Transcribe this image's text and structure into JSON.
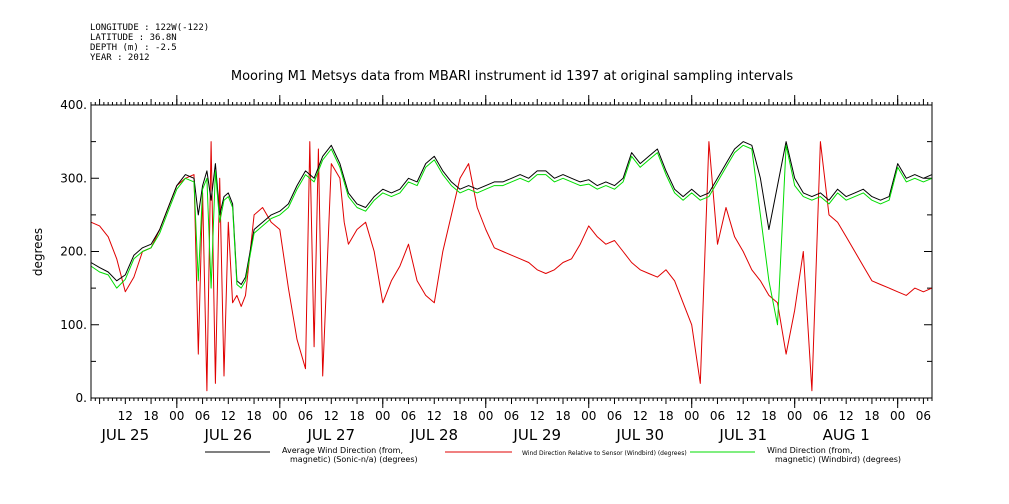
{
  "meta": {
    "longitude": "LONGITUDE : 122W(-122)",
    "latitude": "LATITUDE : 36.8N",
    "depth": "DEPTH (m) : -2.5",
    "year": "YEAR : 2012"
  },
  "chart_data": {
    "type": "line",
    "title": "Mooring M1 Metsys data from MBARI instrument id 1397 at original sampling intervals",
    "ylabel": "degrees",
    "xlabel": "",
    "ylim": [
      0,
      400
    ],
    "xlim": [
      4,
      200
    ],
    "x_unit": "hours since 00:00 JUL 25 2012",
    "y_ticks": [
      "0.",
      "100.",
      "200.",
      "300.",
      "400."
    ],
    "hour_ticks": [
      "12",
      "18",
      "00",
      "06",
      "12",
      "18",
      "00",
      "06",
      "12",
      "18",
      "00",
      "06",
      "12",
      "18",
      "00",
      "06",
      "12",
      "18",
      "00",
      "06",
      "12",
      "18",
      "00",
      "06",
      "12",
      "18",
      "00",
      "06",
      "12",
      "18",
      "00",
      "06"
    ],
    "date_labels": [
      "JUL 25",
      "JUL 26",
      "JUL 27",
      "JUL 28",
      "JUL 29",
      "JUL 30",
      "JUL 31",
      "AUG  1"
    ],
    "grid": false,
    "legend": {
      "placement": "bottom"
    },
    "series": [
      {
        "name": "Average Wind Direction (from, magnetic) (Sonic-n/a) (degrees)",
        "legend_lines": [
          "Average Wind Direction (from,",
          "magnetic) (Sonic-n/a) (degrees)"
        ],
        "color": "#000000",
        "x": [
          4,
          6,
          8,
          10,
          12,
          14,
          16,
          18,
          20,
          22,
          24,
          26,
          28,
          29,
          30,
          31,
          32,
          33,
          34,
          35,
          36,
          37,
          38,
          39,
          40,
          42,
          44,
          46,
          48,
          50,
          52,
          54,
          56,
          58,
          60,
          62,
          64,
          66,
          68,
          70,
          72,
          74,
          76,
          78,
          80,
          82,
          84,
          86,
          88,
          90,
          92,
          94,
          96,
          98,
          100,
          102,
          104,
          106,
          108,
          110,
          112,
          114,
          116,
          118,
          120,
          122,
          124,
          126,
          128,
          130,
          132,
          134,
          136,
          138,
          140,
          142,
          144,
          146,
          148,
          150,
          152,
          154,
          156,
          158,
          160,
          162,
          164,
          166,
          168,
          170,
          172,
          174,
          176,
          178,
          180,
          182,
          184,
          186,
          188,
          190,
          192,
          194,
          196,
          198,
          200
        ],
        "y": [
          185,
          178,
          172,
          160,
          168,
          195,
          205,
          210,
          230,
          260,
          290,
          305,
          300,
          250,
          290,
          310,
          270,
          320,
          250,
          275,
          280,
          265,
          160,
          155,
          165,
          230,
          240,
          250,
          255,
          265,
          290,
          310,
          300,
          330,
          345,
          320,
          280,
          265,
          260,
          275,
          285,
          280,
          285,
          300,
          295,
          320,
          330,
          310,
          295,
          285,
          290,
          285,
          290,
          295,
          295,
          300,
          305,
          300,
          310,
          310,
          300,
          305,
          300,
          295,
          298,
          290,
          295,
          290,
          300,
          335,
          320,
          330,
          340,
          310,
          285,
          275,
          285,
          275,
          280,
          300,
          320,
          340,
          350,
          345,
          300,
          230,
          290,
          350,
          300,
          280,
          275,
          280,
          270,
          285,
          275,
          280,
          285,
          275,
          270,
          275,
          320,
          300,
          305,
          300,
          305
        ]
      },
      {
        "name": "Wind Direction Relative to Sensor (Windbird) (degrees)",
        "legend_lines": [
          "Wind Direction Relative to Sensor (Windbird) (degrees)"
        ],
        "color": "#e00000",
        "x": [
          4,
          6,
          8,
          10,
          12,
          14,
          16,
          18,
          20,
          22,
          24,
          26,
          28,
          29,
          30,
          31,
          32,
          33,
          34,
          35,
          36,
          37,
          38,
          39,
          40,
          42,
          44,
          46,
          48,
          50,
          52,
          54,
          55,
          56,
          57,
          58,
          60,
          62,
          63,
          64,
          66,
          68,
          70,
          72,
          74,
          76,
          78,
          80,
          82,
          84,
          86,
          88,
          90,
          92,
          94,
          96,
          98,
          100,
          102,
          104,
          106,
          108,
          110,
          112,
          114,
          116,
          118,
          120,
          122,
          124,
          126,
          128,
          130,
          132,
          134,
          136,
          138,
          140,
          142,
          144,
          146,
          148,
          150,
          152,
          154,
          156,
          158,
          160,
          162,
          164,
          166,
          168,
          170,
          172,
          174,
          176,
          178,
          180,
          182,
          184,
          186,
          188,
          190,
          192,
          194,
          196,
          198,
          200
        ],
        "y": [
          240,
          235,
          220,
          190,
          145,
          165,
          200,
          205,
          230,
          260,
          290,
          300,
          305,
          60,
          280,
          10,
          350,
          20,
          300,
          30,
          240,
          130,
          140,
          125,
          140,
          250,
          260,
          240,
          230,
          150,
          80,
          40,
          350,
          70,
          340,
          30,
          320,
          300,
          240,
          210,
          230,
          240,
          200,
          130,
          160,
          180,
          210,
          160,
          140,
          130,
          200,
          250,
          300,
          320,
          260,
          230,
          205,
          200,
          195,
          190,
          185,
          175,
          170,
          175,
          185,
          190,
          210,
          235,
          220,
          210,
          215,
          200,
          185,
          175,
          170,
          165,
          175,
          160,
          130,
          100,
          20,
          350,
          210,
          260,
          220,
          200,
          175,
          160,
          140,
          130,
          60,
          120,
          200,
          10,
          350,
          250,
          240,
          220,
          200,
          180,
          160,
          155,
          150,
          145,
          140,
          150,
          145,
          150
        ]
      },
      {
        "name": "Wind Direction (from, magnetic) (Windbird) (degrees)",
        "legend_lines": [
          "Wind Direction (from,",
          "magnetic) (Windbird) (degrees)"
        ],
        "color": "#00dd00",
        "x": [
          4,
          6,
          8,
          10,
          12,
          14,
          16,
          18,
          20,
          22,
          24,
          26,
          28,
          29,
          30,
          31,
          32,
          33,
          34,
          35,
          36,
          37,
          38,
          39,
          40,
          42,
          44,
          46,
          48,
          50,
          52,
          54,
          56,
          58,
          60,
          62,
          64,
          66,
          68,
          70,
          72,
          74,
          76,
          78,
          80,
          82,
          84,
          86,
          88,
          90,
          92,
          94,
          96,
          98,
          100,
          102,
          104,
          106,
          108,
          110,
          112,
          114,
          116,
          118,
          120,
          122,
          124,
          126,
          128,
          130,
          132,
          134,
          136,
          138,
          140,
          142,
          144,
          146,
          148,
          150,
          152,
          154,
          156,
          158,
          160,
          162,
          164,
          166,
          168,
          170,
          172,
          174,
          176,
          178,
          180,
          182,
          184,
          186,
          188,
          190,
          192,
          194,
          196,
          198,
          200
        ],
        "y": [
          180,
          172,
          168,
          150,
          162,
          190,
          200,
          205,
          225,
          255,
          285,
          300,
          295,
          160,
          285,
          300,
          150,
          310,
          240,
          270,
          275,
          260,
          155,
          150,
          160,
          225,
          235,
          245,
          250,
          260,
          285,
          305,
          295,
          325,
          340,
          315,
          275,
          260,
          255,
          270,
          280,
          275,
          280,
          295,
          290,
          315,
          325,
          305,
          290,
          280,
          285,
          280,
          285,
          290,
          290,
          295,
          300,
          295,
          305,
          305,
          295,
          300,
          295,
          290,
          292,
          285,
          290,
          285,
          295,
          330,
          315,
          325,
          335,
          305,
          280,
          270,
          280,
          270,
          275,
          295,
          315,
          335,
          345,
          340,
          250,
          160,
          100,
          345,
          290,
          275,
          270,
          275,
          265,
          280,
          270,
          275,
          280,
          270,
          265,
          270,
          315,
          295,
          300,
          295,
          300
        ]
      }
    ]
  }
}
